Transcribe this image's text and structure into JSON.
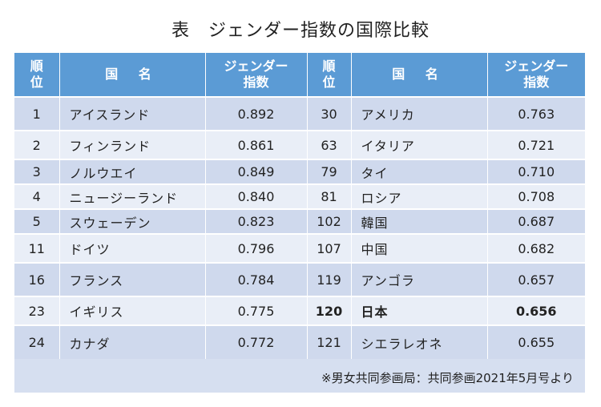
{
  "title": "表　ジェンダー指数の国際比較",
  "headers": {
    "rank_line1": "順",
    "rank_line2": "位",
    "name": "国 名",
    "index_line1": "ジェンダー",
    "index_line2": "指数"
  },
  "rows": [
    {
      "left": {
        "rank": "1",
        "name": "アイスランド",
        "index": "0.892"
      },
      "right": {
        "rank": "30",
        "name": "アメリカ",
        "index": "0.763"
      }
    },
    {
      "left": {
        "rank": "2",
        "name": "フィンランド",
        "index": "0.861"
      },
      "right": {
        "rank": "63",
        "name": "イタリア",
        "index": "0.721"
      }
    },
    {
      "left": {
        "rank": "3",
        "name": "ノルウエイ",
        "index": "0.849"
      },
      "right": {
        "rank": "79",
        "name": "タイ",
        "index": "0.710"
      }
    },
    {
      "left": {
        "rank": "4",
        "name": "ニュージーランド",
        "index": "0.840"
      },
      "right": {
        "rank": "81",
        "name": "ロシア",
        "index": "0.708"
      }
    },
    {
      "left": {
        "rank": "5",
        "name": "スウェーデン",
        "index": "0.823"
      },
      "right": {
        "rank": "102",
        "name": "韓国",
        "index": "0.687"
      }
    },
    {
      "left": {
        "rank": "11",
        "name": "ドイツ",
        "index": "0.796"
      },
      "right": {
        "rank": "107",
        "name": "中国",
        "index": "0.682"
      }
    },
    {
      "left": {
        "rank": "16",
        "name": "フランス",
        "index": "0.784"
      },
      "right": {
        "rank": "119",
        "name": "アンゴラ",
        "index": "0.657"
      }
    },
    {
      "left": {
        "rank": "23",
        "name": "イギリス",
        "index": "0.775"
      },
      "right": {
        "rank": "120",
        "name": "日本",
        "index": "0.656"
      }
    },
    {
      "left": {
        "rank": "24",
        "name": "カナダ",
        "index": "0.772"
      },
      "right": {
        "rank": "121",
        "name": "シエラレオネ",
        "index": "0.655"
      }
    }
  ],
  "note": "※男女共同参画局：共同参画2021年5月号より"
}
